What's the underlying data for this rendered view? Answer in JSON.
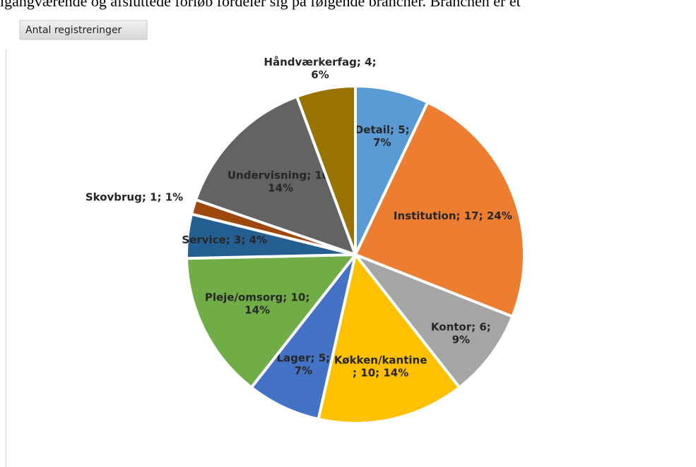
{
  "caption": "igangværende og afsluttede forløb fordeler sig på følgende brancher. Branchen er et",
  "chart_data": {
    "type": "pie",
    "title": "Antal registreringer",
    "values": [
      5,
      17,
      6,
      10,
      5,
      10,
      3,
      1,
      10,
      4
    ],
    "value_labels": [
      "Detail; 5;\n7%",
      "Institution; 17; 24%",
      "Kontor; 6;\n9%",
      "Køkken/kantine\n; 10; 14%",
      "Lager; 5;\n7%",
      "Pleje/omsorg; 10;\n14%",
      "Service; 3; 4%",
      "Skovbrug; 1; 1%",
      "Undervisning; 10;\n14%",
      "Håndværkerfag; 4;\n6%"
    ],
    "colors": [
      "#5b9bd5",
      "#ed7d31",
      "#a5a5a5",
      "#ffc000",
      "#4472c4",
      "#70ad47",
      "#255e91",
      "#9e480e",
      "#636363",
      "#997300"
    ]
  }
}
